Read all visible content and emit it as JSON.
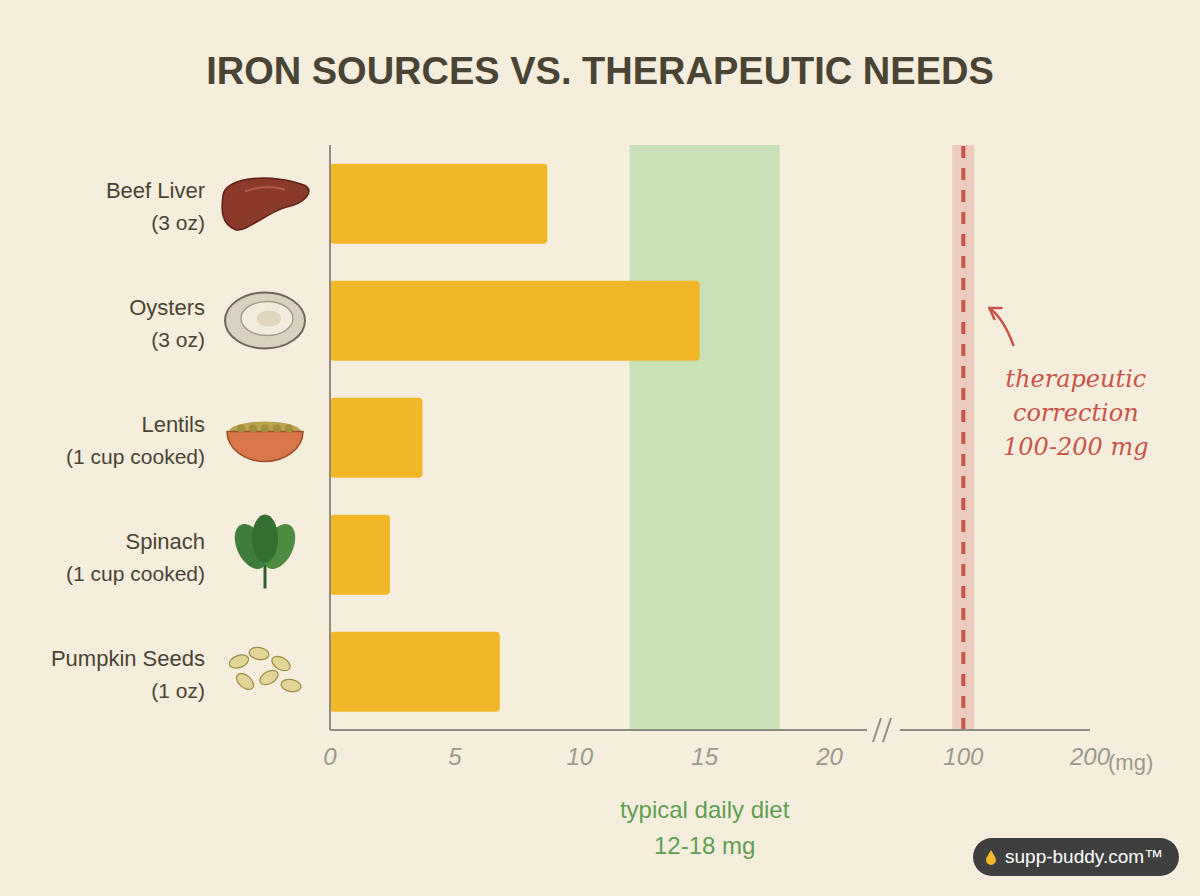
{
  "chart_data": [
    {
      "type": "bar",
      "title": "IRON SOURCES VS. THERAPEUTIC NEEDS",
      "orientation": "horizontal",
      "categories": [
        "Beef Liver (3 oz)",
        "Oysters (3 oz)",
        "Lentils (1 cup cooked)",
        "Spinach (1 cup cooked)",
        "Pumpkin Seeds (1 oz)"
      ],
      "values": [
        8.7,
        14.8,
        3.7,
        2.4,
        6.8
      ],
      "color": "#f2b728",
      "xlim": [
        0,
        21.5
      ],
      "xticks": [
        0,
        5,
        10,
        15,
        20
      ],
      "band": {
        "from": 12,
        "to": 18,
        "label": [
          "typical daily diet",
          "12-18 mg"
        ]
      }
    },
    {
      "type": "bar",
      "orientation": "horizontal",
      "categories": [
        "Beef Liver (3 oz)",
        "Oysters (3 oz)",
        "Lentils (1 cup cooked)",
        "Spinach (1 cup cooked)",
        "Pumpkin Seeds (1 oz)"
      ],
      "values": [
        null,
        null,
        null,
        null,
        null
      ],
      "xlim": [
        50,
        200
      ],
      "xticks": [
        100,
        200
      ],
      "x_label": "(mg)",
      "tick_labels": "x",
      "reference_line": {
        "x": 100,
        "label": [
          "therapeutic",
          "correction",
          "100-200 mg"
        ],
        "color": "#c9554a"
      }
    }
  ],
  "footer": "supp-buddy.com™"
}
